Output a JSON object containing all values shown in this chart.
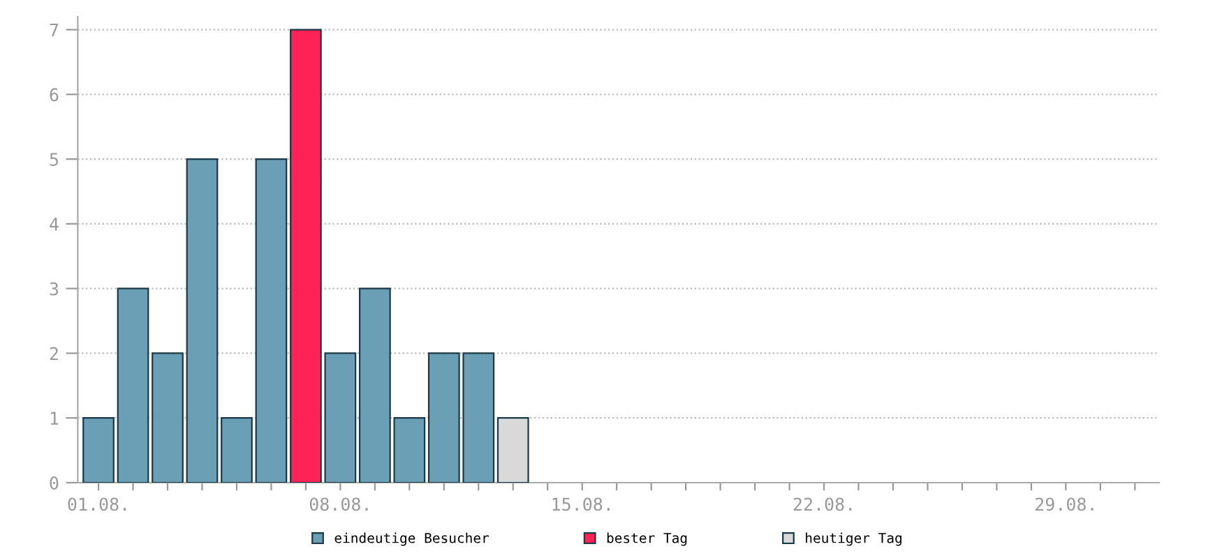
{
  "chart_data": {
    "type": "bar",
    "categories": [
      "01.08.",
      null,
      null,
      null,
      null,
      null,
      null,
      "08.08.",
      null,
      null,
      null,
      null,
      null,
      null,
      "15.08.",
      null,
      null,
      null,
      null,
      null,
      null,
      "22.08.",
      null,
      null,
      null,
      null,
      null,
      null,
      "29.08.",
      null,
      null
    ],
    "series": [
      {
        "name": "eindeutige Besucher",
        "color": "#6a9fb5",
        "values": [
          1,
          3,
          2,
          5,
          1,
          5,
          null,
          2,
          3,
          1,
          2,
          2,
          null,
          null,
          null,
          null,
          null,
          null,
          null,
          null,
          null,
          null,
          null,
          null,
          null,
          null,
          null,
          null,
          null,
          null,
          null
        ]
      },
      {
        "name": "bester Tag",
        "color": "#ff2255",
        "values": [
          null,
          null,
          null,
          null,
          null,
          null,
          7,
          null,
          null,
          null,
          null,
          null,
          null,
          null,
          null,
          null,
          null,
          null,
          null,
          null,
          null,
          null,
          null,
          null,
          null,
          null,
          null,
          null,
          null,
          null,
          null
        ]
      },
      {
        "name": "heutiger Tag",
        "color": "#d9d9d9",
        "values": [
          null,
          null,
          null,
          null,
          null,
          null,
          null,
          null,
          null,
          null,
          null,
          null,
          1,
          null,
          null,
          null,
          null,
          null,
          null,
          null,
          null,
          null,
          null,
          null,
          null,
          null,
          null,
          null,
          null,
          null,
          null
        ]
      }
    ],
    "ylim": [
      0,
      7.2
    ],
    "yticks": [
      0,
      1,
      2,
      3,
      4,
      5,
      6,
      7
    ],
    "grid": "y",
    "legend": "bottom"
  }
}
